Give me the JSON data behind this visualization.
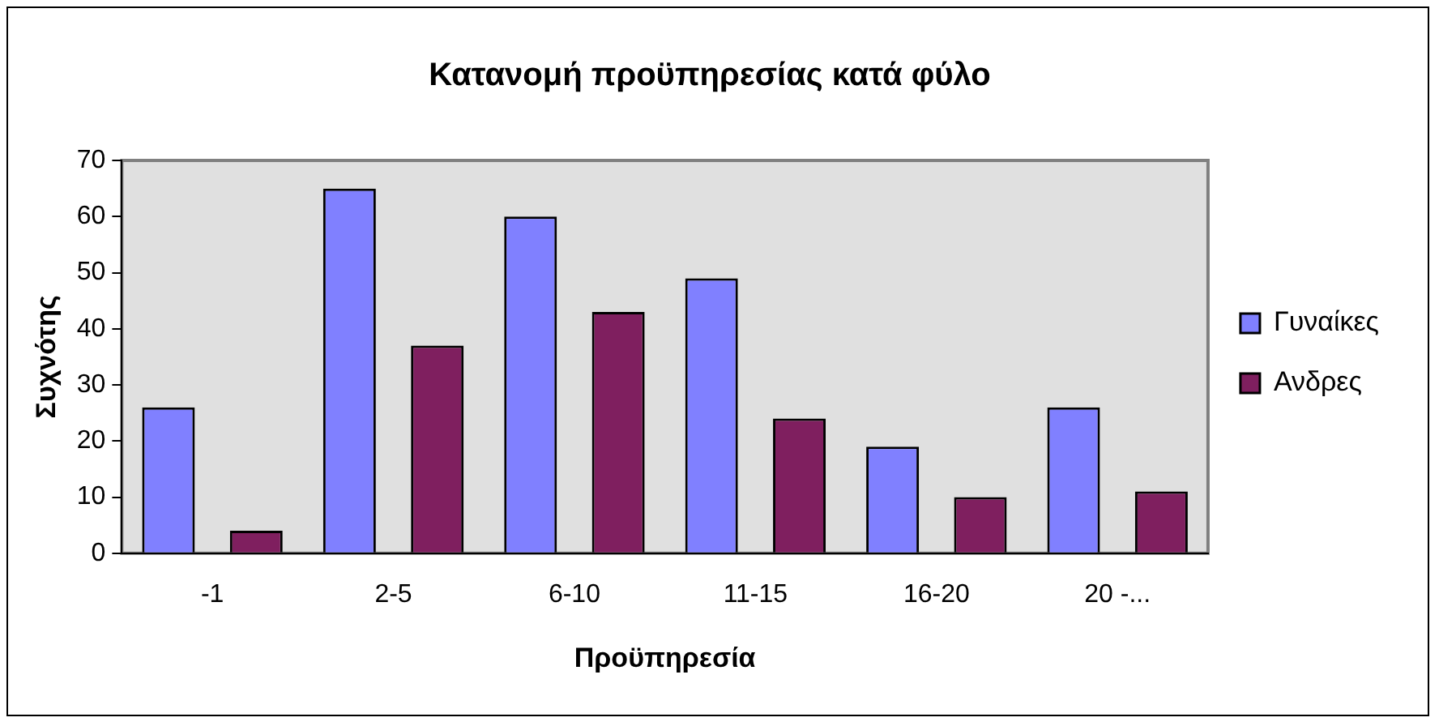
{
  "chart_data": {
    "type": "bar",
    "title": "Κατανομή προϋπηρεσίας κατά φύλο",
    "xlabel": "Προϋπηρεσία",
    "ylabel": "Συχνότης",
    "categories": [
      "-1",
      "2-5",
      "6-10",
      "11-15",
      "16-20",
      "20 -..."
    ],
    "series": [
      {
        "name": "Γυναίκες",
        "color": "#8080ff",
        "values": [
          26,
          65,
          60,
          49,
          19,
          26
        ]
      },
      {
        "name": "Ανδρες",
        "color": "#7f1f5f",
        "values": [
          4,
          37,
          43,
          24,
          10,
          11
        ]
      }
    ],
    "ylim": [
      0,
      70
    ],
    "yticks": [
      0,
      10,
      20,
      30,
      40,
      50,
      60,
      70
    ],
    "grid": false,
    "legend": "right"
  }
}
